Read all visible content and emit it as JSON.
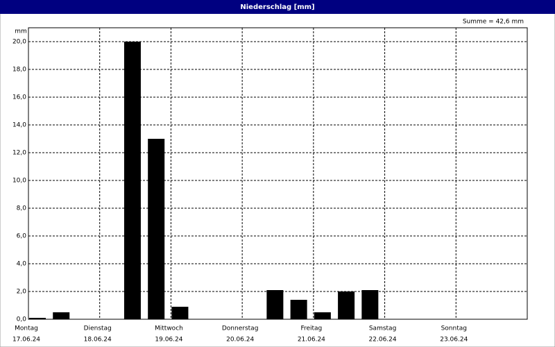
{
  "chart_data": {
    "type": "bar",
    "title": "Niederschlag [mm]",
    "annotation": "Summe = 42,6 mm",
    "y_unit": "mm",
    "days": [
      {
        "name": "Montag",
        "date": "17.06.24"
      },
      {
        "name": "Dienstag",
        "date": "18.06.24"
      },
      {
        "name": "Mittwoch",
        "date": "19.06.24"
      },
      {
        "name": "Donnerstag",
        "date": "20.06.24"
      },
      {
        "name": "Freitag",
        "date": "21.06.24"
      },
      {
        "name": "Samstag",
        "date": "22.06.24"
      },
      {
        "name": "Sonntag",
        "date": "23.06.24"
      }
    ],
    "values": [
      0.1,
      0.5,
      0,
      0,
      20.0,
      13.0,
      0.9,
      0,
      0,
      0,
      2.1,
      1.4,
      0.5,
      2.0,
      2.1,
      0,
      0,
      0,
      0,
      0,
      0
    ],
    "color": "#000000",
    "ylim": [
      0,
      21
    ],
    "yticks": [
      {
        "value": 0,
        "label": "0,0"
      },
      {
        "value": 2,
        "label": "2,0"
      },
      {
        "value": 4,
        "label": "4,0"
      },
      {
        "value": 6,
        "label": "6,0"
      },
      {
        "value": 8,
        "label": "8,0"
      },
      {
        "value": 10,
        "label": "10,0"
      },
      {
        "value": 12,
        "label": "12,0"
      },
      {
        "value": 14,
        "label": "14,0"
      },
      {
        "value": 16,
        "label": "16,0"
      },
      {
        "value": 18,
        "label": "18,0"
      },
      {
        "value": 20,
        "label": "20,0"
      }
    ],
    "grid": true
  }
}
